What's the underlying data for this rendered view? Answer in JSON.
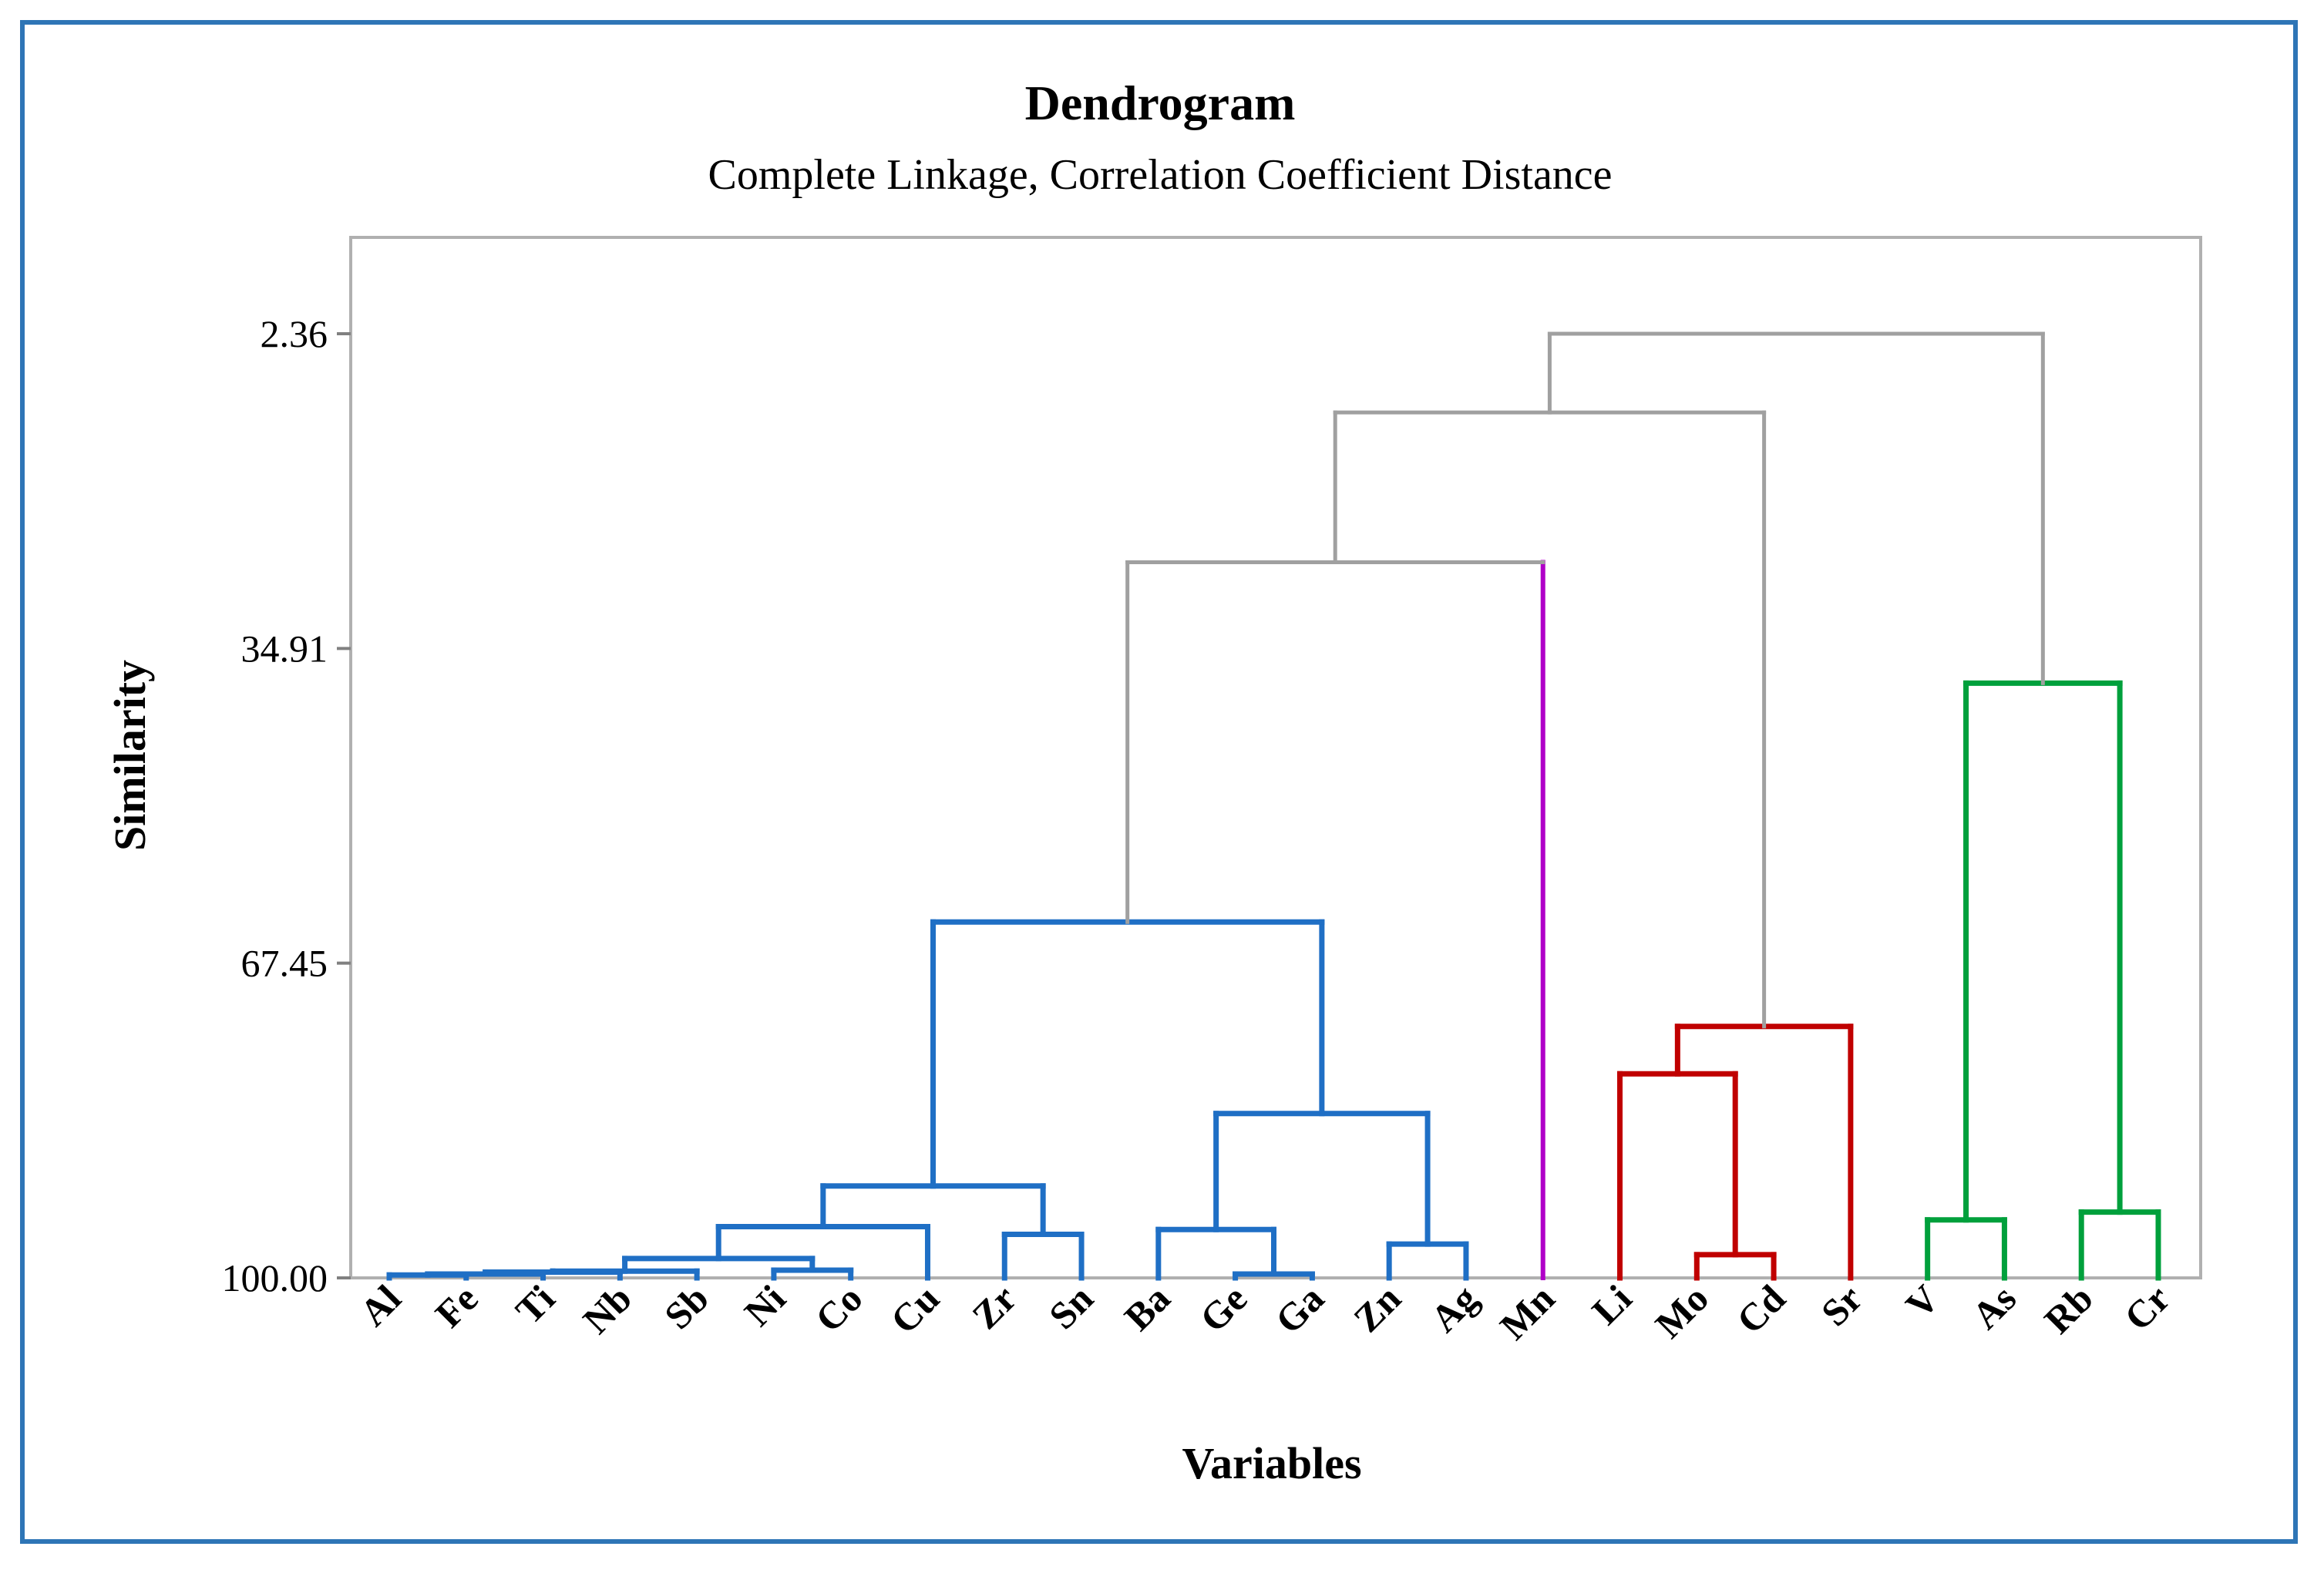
{
  "chart_data": {
    "type": "dendrogram",
    "title": "Dendrogram",
    "subtitle": "Complete Linkage, Correlation Coefficient Distance",
    "xlabel": "Variables",
    "ylabel": "Similarity",
    "y_ticks": [
      "2.36",
      "34.91",
      "67.45",
      "100.00"
    ],
    "y_tick_values": [
      2.36,
      34.91,
      67.45,
      100.0
    ],
    "ylim": [
      -7.6,
      100.0
    ],
    "leaves": [
      "Al",
      "Fe",
      "Ti",
      "Nb",
      "Sb",
      "Ni",
      "Co",
      "Cu",
      "Zr",
      "Sn",
      "Ba",
      "Ge",
      "Ga",
      "Zn",
      "Ag",
      "Mn",
      "Li",
      "Mo",
      "Cd",
      "Sr",
      "V",
      "As",
      "Rb",
      "Cr"
    ],
    "colors": {
      "blue": "#1f6fc5",
      "purple": "#b000c8",
      "red": "#c00000",
      "green": "#00a03c",
      "gray": "#a0a0a0"
    },
    "merges": [
      {
        "id": "m1",
        "a": "Al",
        "b": "Fe",
        "similarity": 99.7,
        "color": "blue"
      },
      {
        "id": "m2",
        "a": "m1",
        "b": "Ti",
        "similarity": 99.6,
        "color": "blue"
      },
      {
        "id": "m3",
        "a": "m2",
        "b": "Nb",
        "similarity": 99.4,
        "color": "blue"
      },
      {
        "id": "m4",
        "a": "Sb",
        "b": "m3",
        "similarity": 99.3,
        "color": "blue"
      },
      {
        "id": "m5",
        "a": "Ni",
        "b": "Co",
        "similarity": 99.2,
        "color": "blue"
      },
      {
        "id": "m6",
        "a": "m4",
        "b": "m5",
        "similarity": 98.0,
        "color": "blue"
      },
      {
        "id": "m7",
        "a": "m6",
        "b": "Cu",
        "similarity": 94.7,
        "color": "blue"
      },
      {
        "id": "m8",
        "a": "Zr",
        "b": "Sn",
        "similarity": 95.5,
        "color": "blue"
      },
      {
        "id": "m9",
        "a": "m7",
        "b": "m8",
        "similarity": 90.5,
        "color": "blue"
      },
      {
        "id": "m10",
        "a": "Ge",
        "b": "Ga",
        "similarity": 99.6,
        "color": "blue"
      },
      {
        "id": "m11",
        "a": "Ba",
        "b": "m10",
        "similarity": 95.0,
        "color": "blue"
      },
      {
        "id": "m12",
        "a": "Zn",
        "b": "Ag",
        "similarity": 96.5,
        "color": "blue"
      },
      {
        "id": "m13",
        "a": "m11",
        "b": "m12",
        "similarity": 83.0,
        "color": "blue"
      },
      {
        "id": "m14",
        "a": "m9",
        "b": "m13",
        "similarity": 63.2,
        "color": "blue"
      },
      {
        "id": "m15",
        "a": "m14",
        "b": "Mn",
        "similarity": 26.0,
        "color": "gray",
        "leg_b_color": "purple"
      },
      {
        "id": "m16",
        "a": "Mo",
        "b": "Cd",
        "similarity": 97.6,
        "color": "red"
      },
      {
        "id": "m17",
        "a": "Li",
        "b": "m16",
        "similarity": 78.9,
        "color": "red"
      },
      {
        "id": "m18",
        "a": "m17",
        "b": "Sr",
        "similarity": 74.0,
        "color": "red"
      },
      {
        "id": "m19",
        "a": "m15",
        "b": "m18",
        "similarity": 10.5,
        "color": "gray"
      },
      {
        "id": "m20",
        "a": "V",
        "b": "As",
        "similarity": 94.0,
        "color": "green"
      },
      {
        "id": "m21",
        "a": "Rb",
        "b": "Cr",
        "similarity": 93.2,
        "color": "green"
      },
      {
        "id": "m22",
        "a": "m20",
        "b": "m21",
        "similarity": 38.5,
        "color": "green"
      },
      {
        "id": "m23",
        "a": "m19",
        "b": "m22",
        "similarity": 2.36,
        "color": "gray"
      }
    ]
  }
}
